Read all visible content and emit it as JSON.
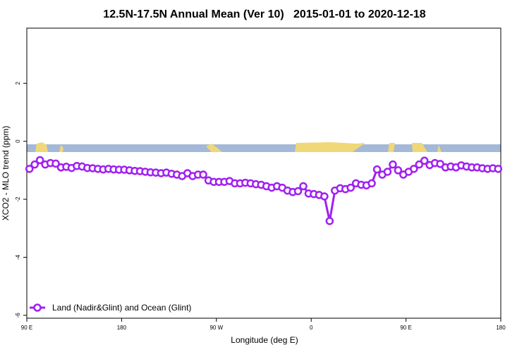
{
  "chart_data": {
    "type": "line",
    "title": "12.5N-17.5N Annual Mean (Ver 10)   2015-01-01 to 2020-12-18",
    "x_label": "Longitude (deg E)",
    "y_label": "XCO2 - MLO trend (ppm)",
    "xlim": [
      90,
      540
    ],
    "xticks": [
      {
        "value": 90,
        "label": "90 E"
      },
      {
        "value": 180,
        "label": "180"
      },
      {
        "value": 270,
        "label": "90 W"
      },
      {
        "value": 360,
        "label": "0"
      },
      {
        "value": 450,
        "label": "90 E"
      },
      {
        "value": 540,
        "label": "180"
      }
    ],
    "ylim": [
      -6.1,
      3.9
    ],
    "yticks": [
      2,
      0,
      -2,
      -4,
      -6
    ],
    "legend": "bottomleft",
    "x": [
      92.5,
      97.5,
      102.5,
      107.5,
      112.5,
      117.5,
      122.5,
      127.5,
      132.5,
      137.5,
      142.5,
      147.5,
      152.5,
      157.5,
      162.5,
      167.5,
      172.5,
      177.5,
      182.5,
      187.5,
      192.5,
      197.5,
      202.5,
      207.5,
      212.5,
      217.5,
      222.5,
      227.5,
      232.5,
      237.5,
      242.5,
      247.5,
      252.5,
      257.5,
      262.5,
      267.5,
      272.5,
      277.5,
      282.5,
      287.5,
      292.5,
      297.5,
      302.5,
      307.5,
      312.5,
      317.5,
      322.5,
      327.5,
      332.5,
      337.5,
      342.5,
      347.5,
      352.5,
      357.5,
      362.5,
      367.5,
      372.5,
      377.5,
      382.5,
      387.5,
      392.5,
      397.5,
      402.5,
      407.5,
      412.5,
      417.5,
      422.5,
      427.5,
      432.5,
      437.5,
      442.5,
      447.5,
      452.5,
      457.5,
      462.5,
      467.5,
      472.5,
      477.5,
      482.5,
      487.5,
      492.5,
      497.5,
      502.5,
      507.5,
      512.5,
      517.5,
      522.5,
      527.5,
      532.5,
      537.5
    ],
    "series": [
      {
        "name": "Land (Nadir&Glint) and Ocean (Glint)",
        "color": "#a020f0",
        "values": [
          -0.95,
          -0.8,
          -0.65,
          -0.8,
          -0.75,
          -0.77,
          -0.9,
          -0.88,
          -0.92,
          -0.85,
          -0.87,
          -0.92,
          -0.93,
          -0.95,
          -0.97,
          -0.95,
          -0.97,
          -0.98,
          -0.98,
          -1.0,
          -1.02,
          -1.03,
          -1.05,
          -1.07,
          -1.08,
          -1.1,
          -1.08,
          -1.12,
          -1.15,
          -1.2,
          -1.1,
          -1.2,
          -1.15,
          -1.15,
          -1.35,
          -1.4,
          -1.4,
          -1.4,
          -1.37,
          -1.45,
          -1.45,
          -1.43,
          -1.45,
          -1.48,
          -1.5,
          -1.55,
          -1.6,
          -1.55,
          -1.6,
          -1.7,
          -1.75,
          -1.72,
          -1.55,
          -1.8,
          -1.82,
          -1.85,
          -1.9,
          -2.75,
          -1.7,
          -1.62,
          -1.65,
          -1.6,
          -1.45,
          -1.5,
          -1.52,
          -1.45,
          -0.97,
          -1.15,
          -1.05,
          -0.8,
          -1.0,
          -1.15,
          -1.05,
          -0.95,
          -0.8,
          -0.67,
          -0.82,
          -0.75,
          -0.78,
          -0.9,
          -0.87,
          -0.9,
          -0.83,
          -0.87,
          -0.9,
          -0.9,
          -0.93,
          -0.95,
          -0.93,
          -0.95
        ]
      }
    ]
  }
}
